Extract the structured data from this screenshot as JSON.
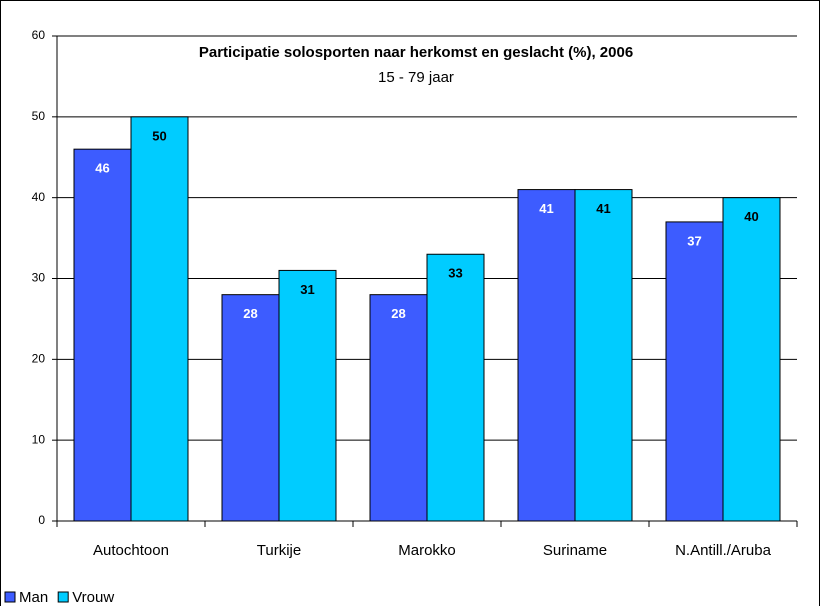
{
  "chart_data": {
    "type": "bar",
    "title": "Participatie solosporten naar herkomst en geslacht (%), 2006",
    "subtitle": "15 - 79 jaar",
    "categories": [
      "Autochtoon",
      "Turkije",
      "Marokko",
      "Suriname",
      "N.Antill./Aruba"
    ],
    "series": [
      {
        "name": "Man",
        "color": "#3d5cff",
        "values": [
          46,
          28,
          28,
          41,
          37
        ]
      },
      {
        "name": "Vrouw",
        "color": "#00ccff",
        "values": [
          50,
          31,
          33,
          41,
          40
        ]
      }
    ],
    "ylim": [
      0,
      60
    ],
    "yticks": [
      0,
      10,
      20,
      30,
      40,
      50,
      60
    ],
    "grid": true,
    "legend": "bottom-left"
  }
}
